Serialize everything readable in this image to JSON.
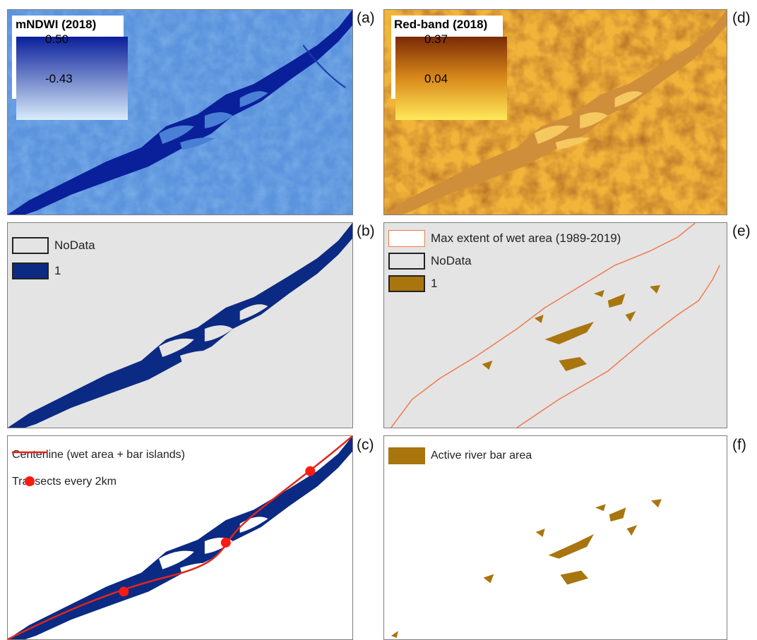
{
  "panels": {
    "a": {
      "label": "(a)",
      "legend_title": "mNDWI (2018)",
      "max": "0.50",
      "min": "-0.43",
      "ramp_colors": [
        "#0a1f9a",
        "#d9ecfb"
      ]
    },
    "d": {
      "label": "(d)",
      "legend_title": "Red-band (2018)",
      "max": "0.37",
      "min": "0.04",
      "ramp_colors": [
        "#7a2a06",
        "#ffe85a"
      ]
    },
    "b": {
      "label": "(b)",
      "legend": [
        {
          "label": "NoData",
          "color": "#e4e4e4"
        },
        {
          "label": "1",
          "color": "#0b2a83"
        }
      ]
    },
    "e": {
      "label": "(e)",
      "legend": [
        {
          "label": "Max extent of wet area (1989-2019)",
          "color": "#f07a4a"
        },
        {
          "label": "NoData",
          "color": "#e4e4e4"
        },
        {
          "label": "1",
          "color": "#a9750e"
        }
      ]
    },
    "c": {
      "label": "(c)",
      "legend": [
        {
          "label": "Centerline (wet area + bar islands)",
          "color": "#e0261b"
        },
        {
          "label": "Transects every 2km",
          "color": "#ff1a10"
        }
      ]
    },
    "f": {
      "label": "(f)",
      "legend": [
        {
          "label": "Active river bar area",
          "color": "#a9750e"
        }
      ]
    }
  },
  "colors": {
    "water": "#0b2a83",
    "bar": "#a9750e",
    "nodata": "#e4e4e4",
    "centerline": "#e0261b"
  }
}
